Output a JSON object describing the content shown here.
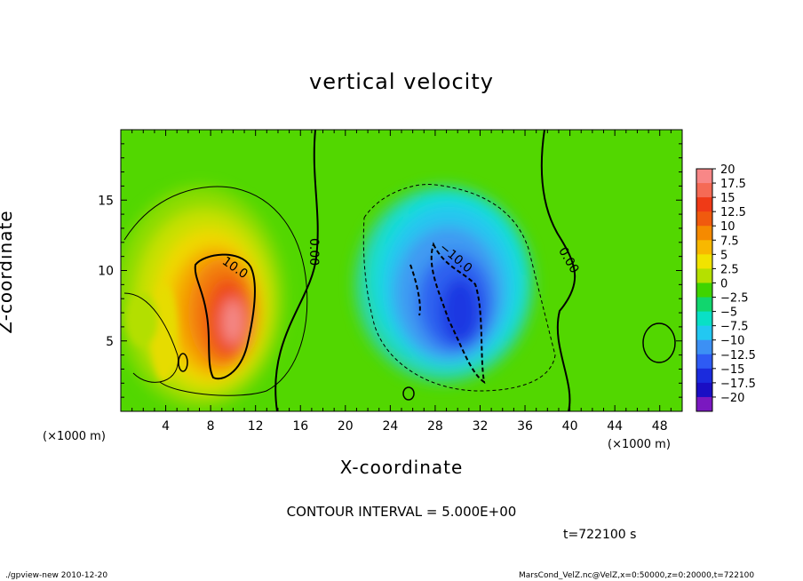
{
  "chart_data": {
    "type": "heatmap",
    "title": "vertical velocity",
    "xlabel": "X-coordinate",
    "ylabel": "Z-coordinate",
    "xunit": "(×1000 m)",
    "xlim": [
      0,
      50
    ],
    "ylim": [
      0,
      20
    ],
    "x_ticks": [
      "4",
      "8",
      "12",
      "16",
      "20",
      "24",
      "28",
      "32",
      "36",
      "40",
      "44",
      "48"
    ],
    "y_ticks": [
      "5",
      "10",
      "15"
    ],
    "colorbar_labels": [
      "20",
      "17.5",
      "15",
      "12.5",
      "10",
      "7.5",
      "5",
      "2.5",
      "0",
      "−2.5",
      "−5",
      "−7.5",
      "−10",
      "−12.5",
      "−15",
      "−17.5",
      "−20"
    ],
    "colorbar_colors": [
      "#f88787",
      "#f56a55",
      "#ef3a17",
      "#f05a0e",
      "#f58a00",
      "#f8b800",
      "#f1e300",
      "#b5e000",
      "#3fd400",
      "#11d66e",
      "#09e0c6",
      "#22c8f2",
      "#3c90f4",
      "#2e5bf4",
      "#1b2bdd",
      "#1a0ec4",
      "#7a18c0"
    ],
    "contour_labels": [
      "10.0",
      "0.00",
      "−10.0",
      "0.00"
    ],
    "features": [
      {
        "kind": "updraft",
        "x": 9,
        "z": 7,
        "peak": 16
      },
      {
        "kind": "downdraft",
        "x": 30,
        "z": 6,
        "peak": -13
      }
    ]
  },
  "annotations": {
    "contour_interval": "CONTOUR INTERVAL = 5.000E+00",
    "time": "t=722100 s",
    "footer_left": "./gpview-new  2010-12-20",
    "footer_right": "MarsCond_VelZ.nc@VelZ,x=0:50000,z=0:20000,t=722100"
  }
}
